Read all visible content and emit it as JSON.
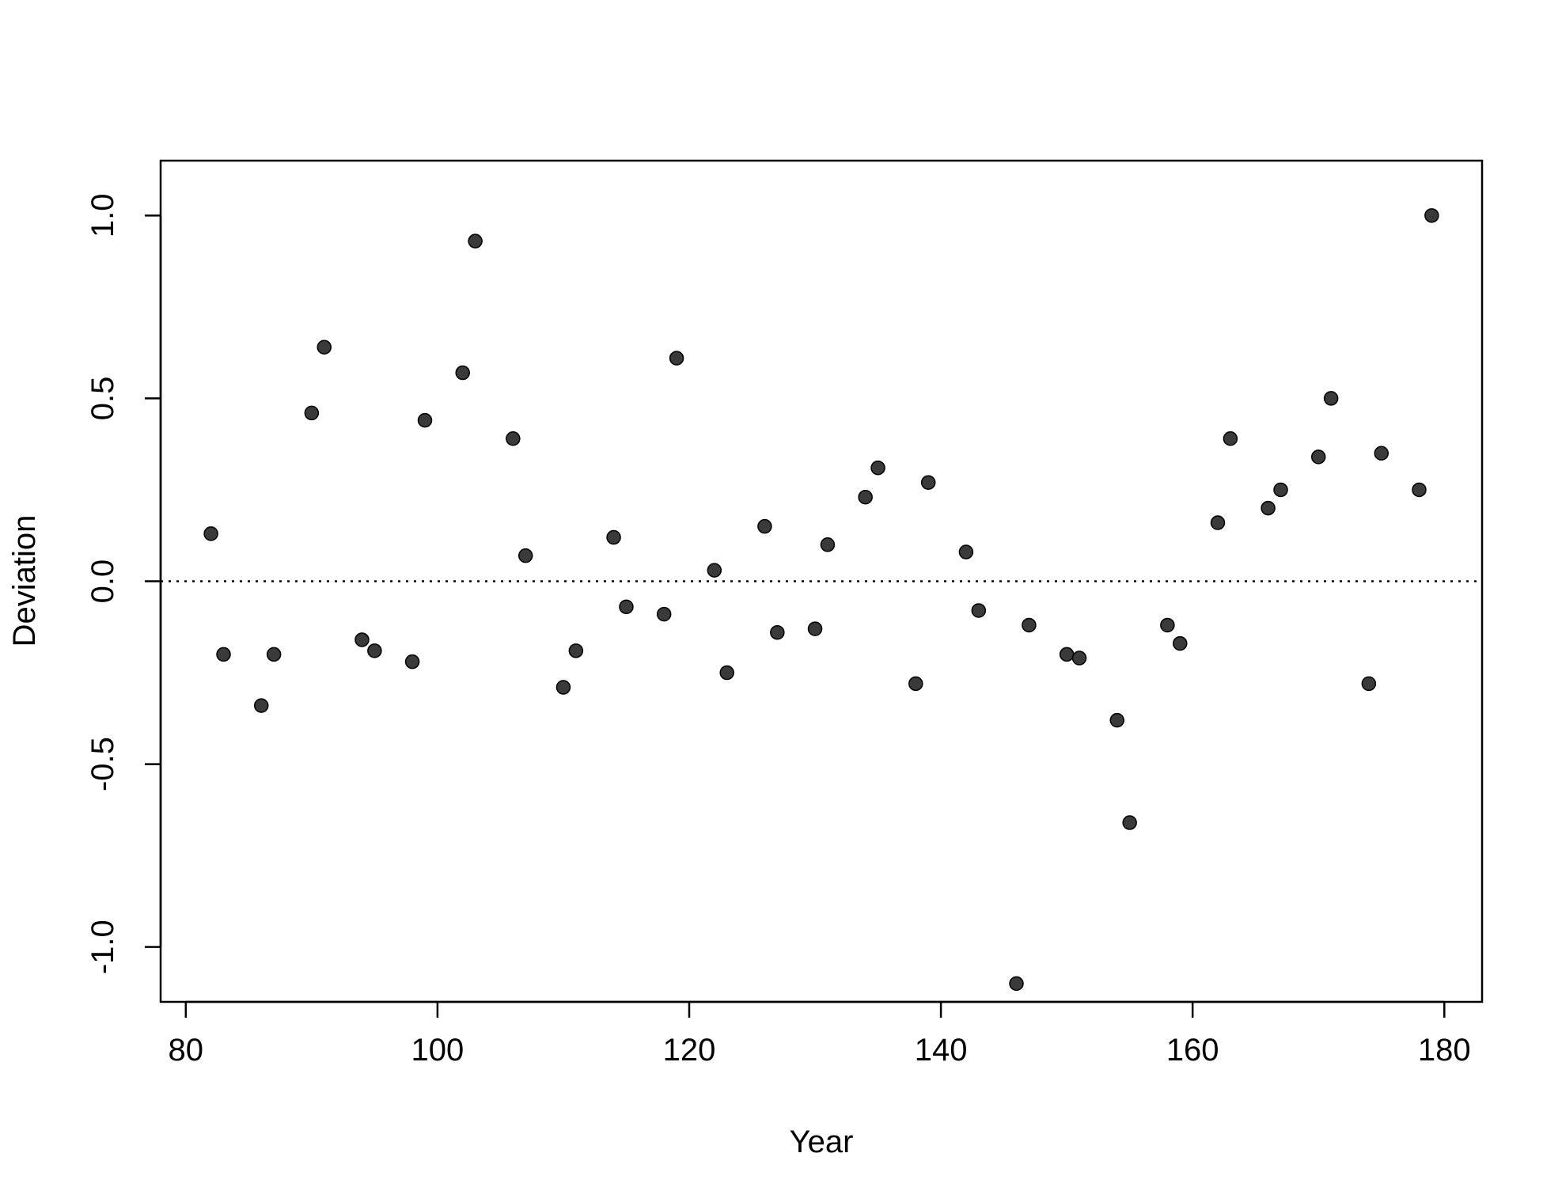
{
  "chart_data": {
    "type": "scatter",
    "xlabel": "Year",
    "ylabel": "Deviation",
    "xlim": [
      78,
      183
    ],
    "ylim": [
      -1.15,
      1.15
    ],
    "x_ticks": [
      80,
      100,
      120,
      140,
      160,
      180
    ],
    "x_tick_labels": [
      "80",
      "100",
      "120",
      "140",
      "160",
      "180"
    ],
    "y_ticks": [
      -1.0,
      -0.5,
      0.0,
      0.5,
      1.0
    ],
    "y_tick_labels": [
      "-1.0",
      "-0.5",
      "0.0",
      "0.5",
      "1.0"
    ],
    "reference_line": {
      "y": 0.0,
      "style": "dotted"
    },
    "grid": false,
    "legend": "none",
    "point_color": "#3a3a3a",
    "series": [
      {
        "x": [
          82,
          83,
          86,
          87,
          90,
          91,
          94,
          95,
          98,
          99,
          102,
          103,
          106,
          107,
          110,
          111,
          114,
          115,
          118,
          119,
          122,
          123,
          126,
          127,
          130,
          131,
          134,
          135,
          138,
          139,
          142,
          143,
          146,
          147,
          150,
          151,
          154,
          155,
          158,
          159,
          162,
          163,
          166,
          167,
          170,
          171,
          174,
          175,
          178,
          179
        ],
        "y": [
          0.13,
          -0.2,
          -0.34,
          -0.2,
          0.46,
          0.64,
          -0.16,
          -0.19,
          -0.22,
          0.44,
          0.57,
          0.93,
          0.39,
          0.07,
          -0.29,
          -0.19,
          0.12,
          -0.07,
          -0.09,
          0.61,
          0.03,
          -0.25,
          0.15,
          -0.14,
          -0.13,
          0.1,
          0.23,
          0.31,
          -0.28,
          0.27,
          0.08,
          -0.08,
          -1.1,
          -0.12,
          -0.2,
          -0.21,
          -0.38,
          -0.66,
          -0.12,
          -0.17,
          0.16,
          0.39,
          0.2,
          0.25,
          0.34,
          0.5,
          -0.28,
          0.35,
          0.25,
          1.0
        ]
      }
    ]
  }
}
